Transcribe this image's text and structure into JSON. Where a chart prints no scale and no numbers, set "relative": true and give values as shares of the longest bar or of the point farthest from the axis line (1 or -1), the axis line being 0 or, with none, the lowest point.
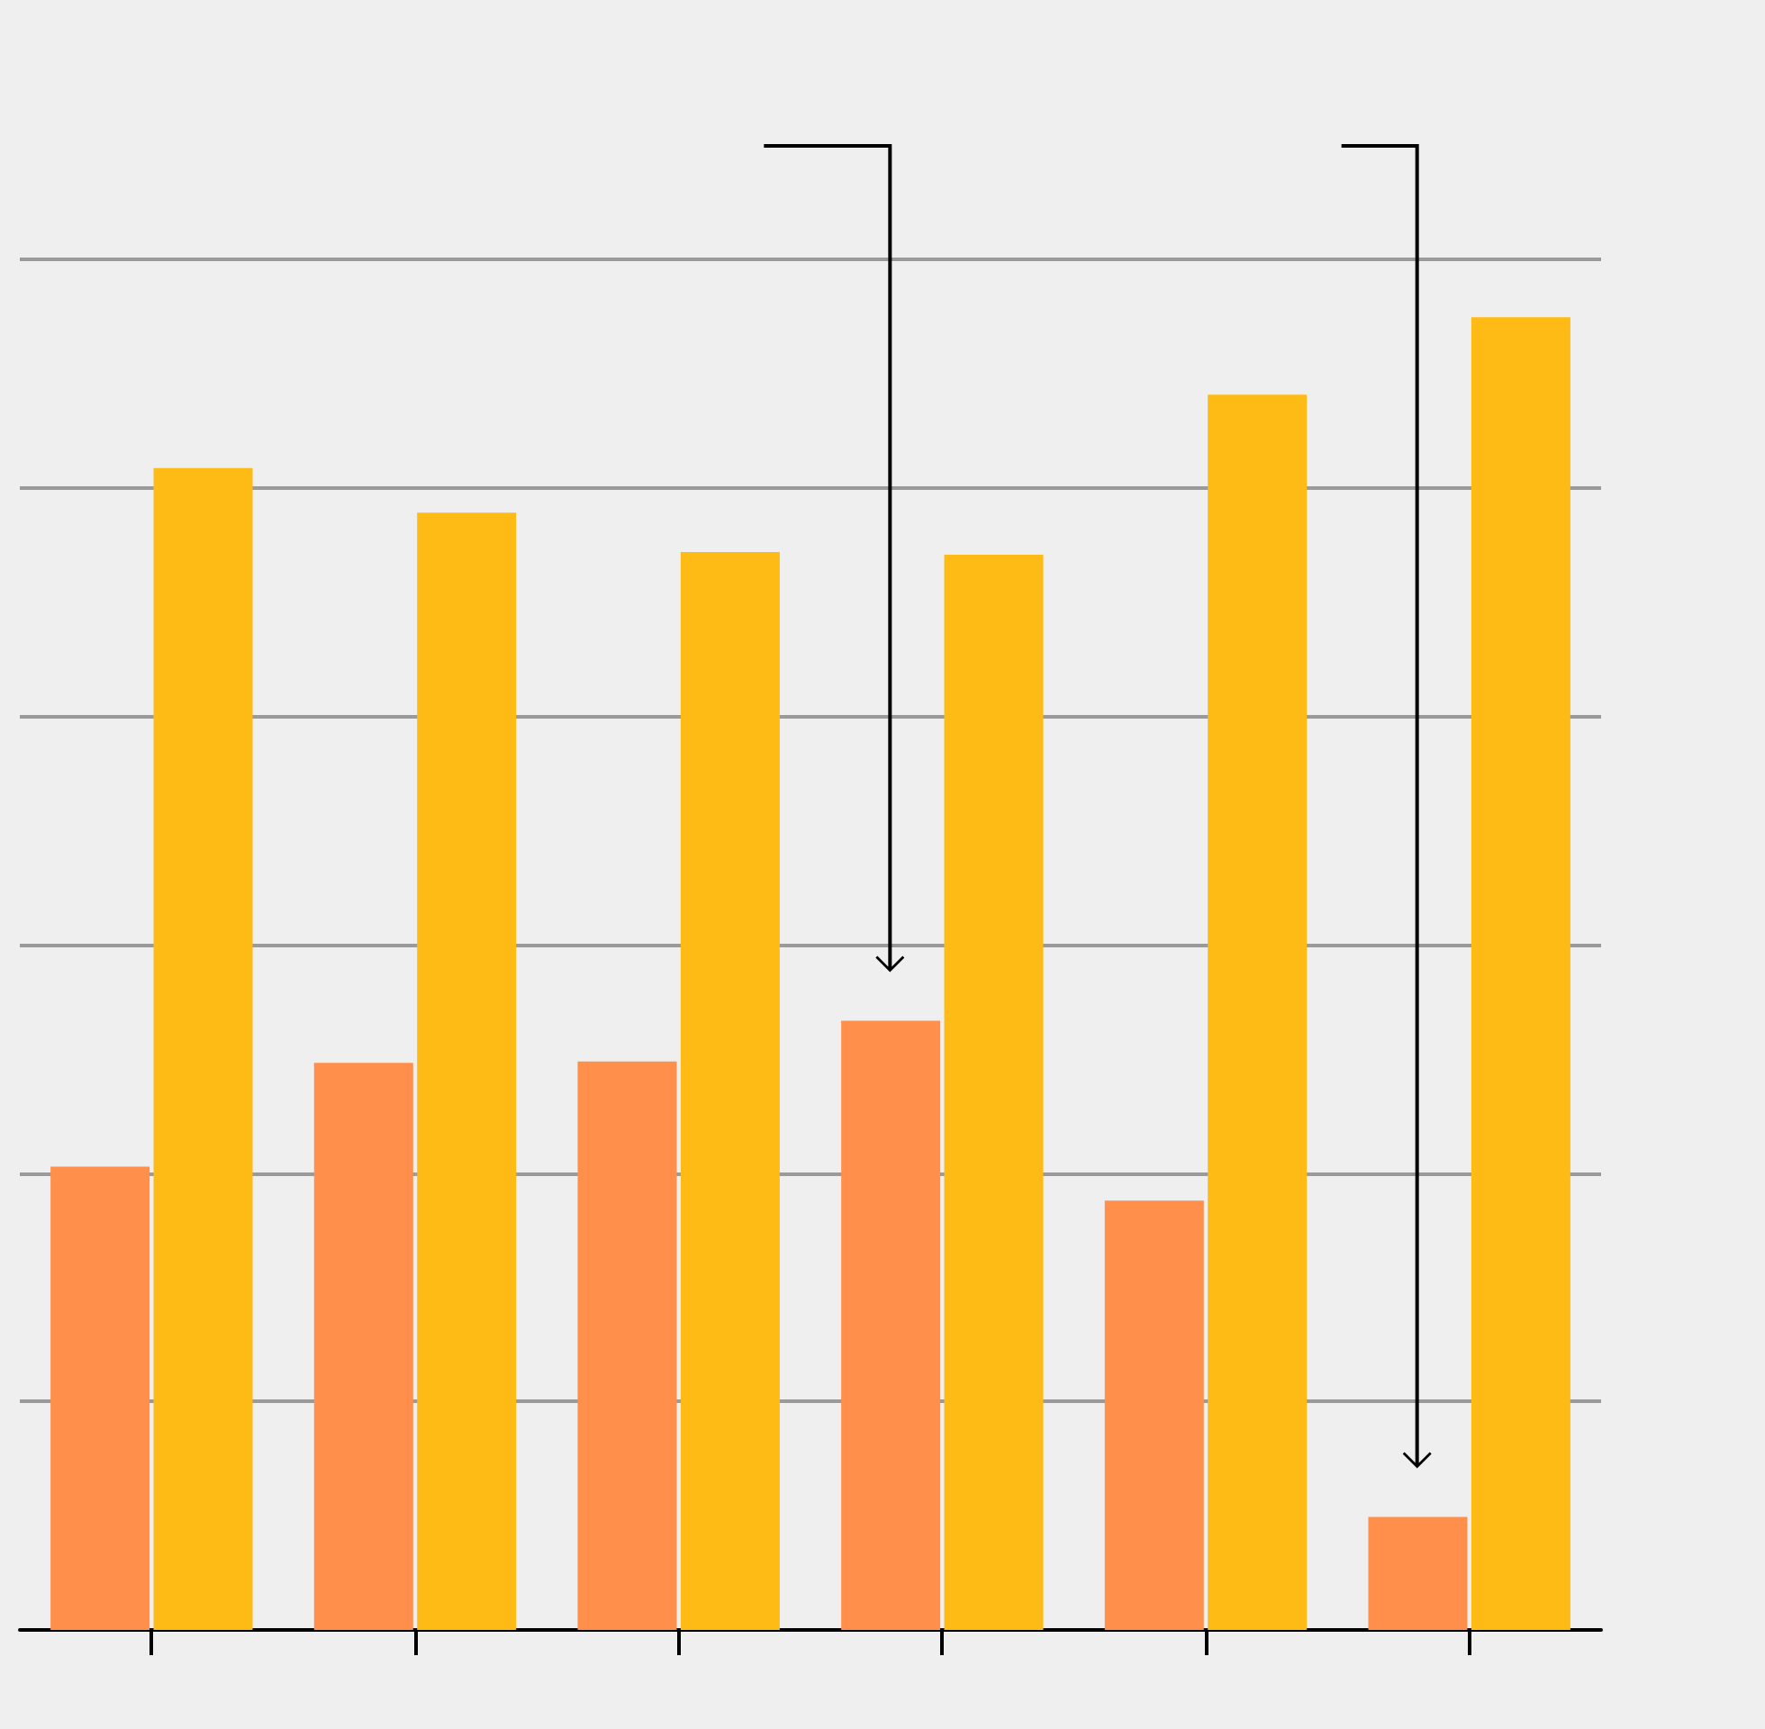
{
  "chart_data": {
    "type": "bar",
    "relative": true,
    "grid": "y",
    "categories": [
      null,
      null,
      null,
      null,
      null,
      null
    ],
    "series": [
      {
        "color": "#ff8f4a",
        "values": [
          0.353,
          0.432,
          0.433,
          0.464,
          0.327,
          0.086
        ]
      },
      {
        "color": "#ffbb15",
        "values": [
          0.885,
          0.851,
          0.821,
          0.819,
          0.941,
          1
        ]
      }
    ]
  }
}
